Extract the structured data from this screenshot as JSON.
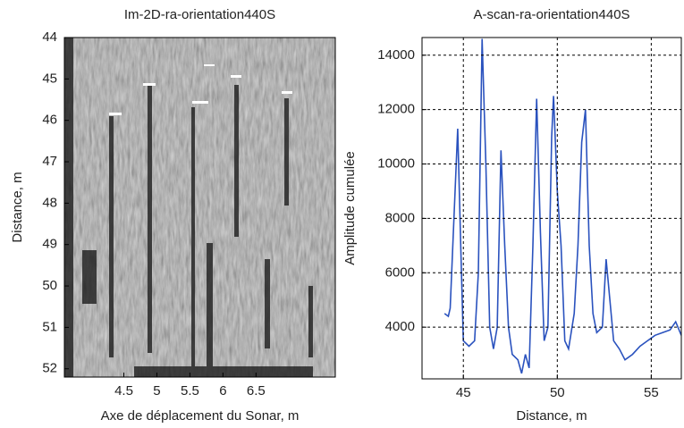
{
  "chart_data": [
    {
      "type": "image",
      "title": "Im-2D-ra-orientation440S",
      "x_label": "Axe de déplacement du Sonar, m",
      "y_label": "Distance, m",
      "xlim": [
        3.6,
        7.7
      ],
      "xticks": [
        4.5,
        5,
        5.5,
        6,
        6.5
      ],
      "ylim": [
        44,
        52.2
      ],
      "yticks": [
        44,
        45,
        46,
        47,
        48,
        49,
        50,
        51,
        52
      ],
      "y_inverted": true
    },
    {
      "type": "line",
      "title": "A-scan-ra-orientation440S",
      "x_label": "Distance, m",
      "y_label": "Amplitude cumulée",
      "xlim": [
        42.8,
        56.6
      ],
      "xticks": [
        45,
        50,
        55
      ],
      "ylim": [
        2100,
        14650
      ],
      "yticks": [
        4000,
        6000,
        8000,
        10000,
        12000,
        14000
      ],
      "grid": true,
      "color": "#2a52be",
      "x": [
        44.0,
        44.2,
        44.3,
        44.5,
        44.7,
        44.9,
        45.0,
        45.3,
        45.6,
        45.8,
        46.0,
        46.2,
        46.4,
        46.6,
        46.8,
        47.0,
        47.2,
        47.4,
        47.6,
        47.9,
        48.1,
        48.3,
        48.5,
        48.7,
        48.9,
        49.1,
        49.3,
        49.5,
        49.7,
        49.8,
        50.0,
        50.2,
        50.4,
        50.6,
        50.9,
        51.1,
        51.3,
        51.5,
        51.7,
        51.9,
        52.1,
        52.4,
        52.6,
        52.8,
        53.0,
        53.3,
        53.6,
        54.0,
        54.4,
        54.8,
        55.2,
        55.6,
        56.0,
        56.3,
        56.6
      ],
      "values": [
        4500,
        4400,
        4700,
        8000,
        11300,
        6000,
        3500,
        3300,
        3500,
        6000,
        14600,
        10000,
        4000,
        3200,
        4000,
        10500,
        7000,
        4000,
        3000,
        2800,
        2300,
        3000,
        2500,
        7000,
        12400,
        7500,
        3500,
        4000,
        11000,
        12500,
        9000,
        7000,
        3500,
        3200,
        4500,
        7000,
        10800,
        12000,
        7000,
        4500,
        3800,
        4000,
        6500,
        5000,
        3500,
        3200,
        2800,
        3000,
        3300,
        3500,
        3700,
        3800,
        3900,
        4200,
        3700
      ]
    }
  ]
}
